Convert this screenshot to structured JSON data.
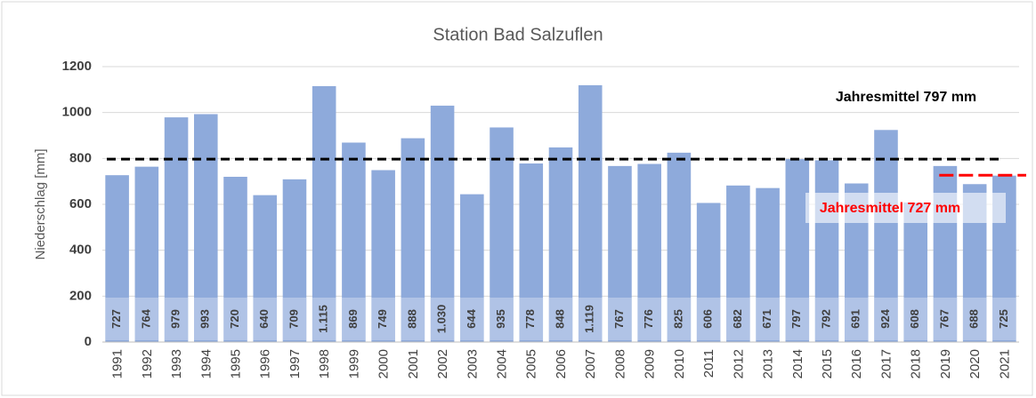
{
  "chart_data": {
    "type": "bar",
    "title": "Station Bad Salzuflen",
    "ylabel": "Niederschlag [mm]",
    "categories": [
      "1991",
      "1992",
      "1993",
      "1994",
      "1995",
      "1996",
      "1997",
      "1998",
      "1999",
      "2000",
      "2001",
      "2002",
      "2003",
      "2004",
      "2005",
      "2006",
      "2007",
      "2008",
      "2009",
      "2010",
      "2011",
      "2012",
      "2013",
      "2014",
      "2015",
      "2016",
      "2017",
      "2018",
      "2019",
      "2020",
      "2021"
    ],
    "values": [
      727,
      764,
      979,
      993,
      720,
      640,
      709,
      1115,
      869,
      749,
      888,
      1030,
      644,
      935,
      778,
      848,
      1119,
      767,
      776,
      825,
      606,
      682,
      671,
      797,
      792,
      691,
      924,
      608,
      767,
      688,
      725
    ],
    "value_labels": [
      "727",
      "764",
      "979",
      "993",
      "720",
      "640",
      "709",
      "1.115",
      "869",
      "749",
      "888",
      "1.030",
      "644",
      "935",
      "778",
      "848",
      "1.119",
      "767",
      "776",
      "825",
      "606",
      "682",
      "671",
      "797",
      "792",
      "691",
      "924",
      "608",
      "767",
      "688",
      "725"
    ],
    "color": "#8eaadb",
    "ylim": [
      0,
      1200
    ],
    "yticks": [
      0,
      200,
      400,
      600,
      800,
      1000,
      1200
    ],
    "grid": true,
    "reference_lines": [
      {
        "value": 797,
        "label": "Jahresmittel 797 mm",
        "color": "#000000"
      },
      {
        "value": 727,
        "label": "Jahresmittel 727 mm",
        "color": "#ff0000"
      }
    ]
  }
}
